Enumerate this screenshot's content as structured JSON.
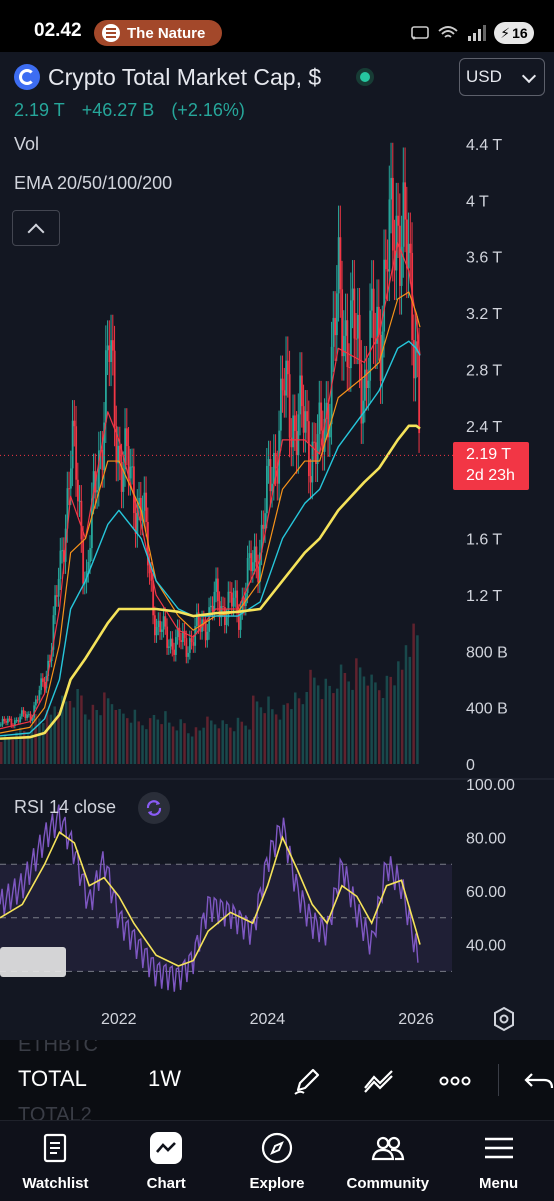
{
  "status_bar": {
    "time": "02.42",
    "media_label": "The Nature",
    "battery": "16",
    "icons": [
      "cast-icon",
      "wifi-icon",
      "signal-icon",
      "battery-charging-icon"
    ]
  },
  "header": {
    "title": "Crypto Total Market Cap, $",
    "currency": "USD",
    "last_price": "2.19 T",
    "change": "+46.27 B",
    "change_pct": "(+2.16%)",
    "vol_label": "Vol",
    "ema_label": "EMA 20/50/100/200"
  },
  "colors": {
    "up": "#26a69a",
    "down": "#f23645",
    "ema20": "#f23645",
    "ema50": "#f7931a",
    "ema100": "#26c6da",
    "ema200": "#f5e35a",
    "rsi": "#7e57c2",
    "rsi_ma": "#f5e35a"
  },
  "price_tag": {
    "value": "2.19 T",
    "countdown": "2d 23h"
  },
  "price_axis": [
    "4.4 T",
    "4 T",
    "3.6 T",
    "3.2 T",
    "2.8 T",
    "2.4 T",
    "1.6 T",
    "1.2 T",
    "800 B",
    "400 B",
    "0"
  ],
  "rsi": {
    "label": "RSI 14 close",
    "axis": [
      "100.00",
      "80.00",
      "60.00",
      "40.00"
    ],
    "upper_band": 70,
    "lower_band": 30
  },
  "time_axis": [
    "2022",
    "2024",
    "2026"
  ],
  "chart_data": {
    "type": "candlestick",
    "title": "Crypto Total Market Cap, $",
    "interval": "1W",
    "ylim": [
      0,
      4.4
    ],
    "price_series": {
      "x": [
        2020.4,
        2020.8,
        2021.0,
        2021.2,
        2021.35,
        2021.55,
        2021.85,
        2022.0,
        2022.3,
        2022.5,
        2022.8,
        2023.0,
        2023.3,
        2023.6,
        2023.9,
        2024.2,
        2024.5,
        2024.7,
        2024.95,
        2025.3,
        2025.5,
        2025.75,
        2025.9,
        2026.0,
        2026.05
      ],
      "values": [
        0.28,
        0.35,
        0.6,
        1.35,
        2.3,
        1.3,
        2.9,
        2.2,
        1.8,
        0.95,
        0.85,
        0.9,
        1.15,
        1.1,
        1.6,
        2.6,
        2.35,
        2.2,
        3.3,
        2.75,
        3.2,
        4.0,
        3.35,
        3.0,
        2.19
      ]
    },
    "ema": [
      {
        "name": "EMA 20",
        "values": [
          0.25,
          0.3,
          0.5,
          1.1,
          1.9,
          1.6,
          2.5,
          2.3,
          1.7,
          1.2,
          0.95,
          0.9,
          1.1,
          1.1,
          1.45,
          2.3,
          2.3,
          2.2,
          2.95,
          2.85,
          3.05,
          3.7,
          3.5,
          3.15,
          2.9
        ]
      },
      {
        "name": "EMA 50",
        "values": [
          0.22,
          0.26,
          0.4,
          0.85,
          1.5,
          1.6,
          2.15,
          2.15,
          1.8,
          1.3,
          1.05,
          0.95,
          1.05,
          1.08,
          1.3,
          1.95,
          2.15,
          2.15,
          2.6,
          2.75,
          2.85,
          3.3,
          3.35,
          3.2,
          3.1
        ]
      },
      {
        "name": "EMA 100",
        "values": [
          0.2,
          0.22,
          0.32,
          0.6,
          1.1,
          1.3,
          1.7,
          1.8,
          1.6,
          1.3,
          1.1,
          1.05,
          1.05,
          1.05,
          1.15,
          1.6,
          1.85,
          1.95,
          2.25,
          2.5,
          2.65,
          2.95,
          3.0,
          2.95,
          2.9
        ]
      },
      {
        "name": "EMA 200",
        "values": [
          0.18,
          0.19,
          0.22,
          0.35,
          0.6,
          0.75,
          1.0,
          1.1,
          1.1,
          1.1,
          1.08,
          1.05,
          1.07,
          1.08,
          1.1,
          1.3,
          1.5,
          1.6,
          1.8,
          2.0,
          2.1,
          2.3,
          2.4,
          2.4,
          2.38
        ]
      }
    ],
    "rsi_series": {
      "x": [
        2020.4,
        2020.7,
        2021.0,
        2021.2,
        2021.4,
        2021.6,
        2021.8,
        2022.0,
        2022.2,
        2022.5,
        2022.8,
        2023.0,
        2023.2,
        2023.5,
        2023.8,
        2024.0,
        2024.2,
        2024.4,
        2024.6,
        2024.8,
        2025.0,
        2025.2,
        2025.4,
        2025.6,
        2025.8,
        2026.0,
        2026.05
      ],
      "values": [
        55,
        62,
        80,
        88,
        75,
        55,
        72,
        50,
        42,
        30,
        28,
        35,
        55,
        52,
        45,
        72,
        85,
        60,
        48,
        45,
        70,
        52,
        40,
        70,
        62,
        38,
        28
      ]
    },
    "rsi_ma": [
      50,
      55,
      70,
      82,
      78,
      62,
      65,
      58,
      48,
      36,
      32,
      34,
      45,
      52,
      48,
      62,
      80,
      68,
      55,
      48,
      62,
      58,
      48,
      62,
      64,
      45,
      40
    ],
    "volume": [
      0.2,
      0.25,
      0.35,
      0.45,
      0.5,
      0.4,
      0.45,
      0.35,
      0.3,
      0.35,
      0.3,
      0.25,
      0.3,
      0.28,
      0.3,
      0.45,
      0.4,
      0.45,
      0.6,
      0.55,
      0.65,
      0.7,
      0.6,
      0.65,
      0.9
    ]
  },
  "toolbar": {
    "symbol": "TOTAL",
    "interval": "1W",
    "ghost_above": "ETHBTC",
    "ghost_below": "TOTAL2",
    "icons": [
      "draw-icon",
      "indicator-icon",
      "more-icon",
      "undo-icon"
    ]
  },
  "nav": {
    "items": [
      {
        "label": "Watchlist",
        "icon": "watchlist-icon"
      },
      {
        "label": "Chart",
        "icon": "chart-icon"
      },
      {
        "label": "Explore",
        "icon": "compass-icon"
      },
      {
        "label": "Community",
        "icon": "community-icon"
      },
      {
        "label": "Menu",
        "icon": "menu-icon"
      }
    ]
  }
}
